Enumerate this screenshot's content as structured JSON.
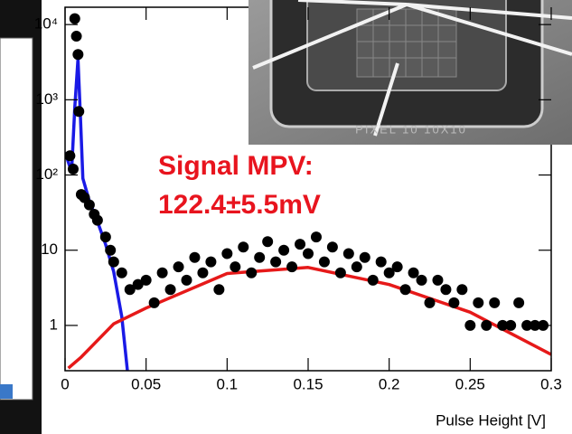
{
  "chart_data": {
    "type": "scatter",
    "x_label": "Pulse Height [V]",
    "annotation_lines": [
      "Signal MPV:",
      "122.4±5.5mV"
    ],
    "inset_photo_text": "PIXEL 10 10X10",
    "xlim": [
      0,
      0.3
    ],
    "xticks": [
      0,
      0.05,
      0.1,
      0.15,
      0.2,
      0.25,
      0.3
    ],
    "ylim": [
      0.25,
      17000
    ],
    "yscale": "log",
    "yticks": [
      1,
      10,
      {
        "value": 100,
        "label": "10²"
      },
      {
        "value": 1000,
        "label": "10³"
      },
      {
        "value": 10000,
        "label": "10⁴"
      }
    ],
    "series": [
      {
        "type": "scatter",
        "color": "#000000",
        "x": [
          0.003,
          0.005,
          0.006,
          0.007,
          0.008,
          0.0085,
          0.01,
          0.012,
          0.015,
          0.018,
          0.02,
          0.025,
          0.028,
          0.03,
          0.035,
          0.04,
          0.045,
          0.05,
          0.055,
          0.06,
          0.065,
          0.07,
          0.075,
          0.08,
          0.085,
          0.09,
          0.095,
          0.1,
          0.105,
          0.11,
          0.115,
          0.12,
          0.125,
          0.13,
          0.135,
          0.14,
          0.145,
          0.15,
          0.155,
          0.16,
          0.165,
          0.17,
          0.175,
          0.18,
          0.185,
          0.19,
          0.195,
          0.2,
          0.205,
          0.21,
          0.215,
          0.22,
          0.225,
          0.23,
          0.235,
          0.24,
          0.245,
          0.25,
          0.255,
          0.26,
          0.265,
          0.27,
          0.275,
          0.28,
          0.285,
          0.29,
          0.295
        ],
        "values": [
          180,
          120,
          12000,
          7000,
          4000,
          700,
          55,
          50,
          40,
          30,
          25,
          15,
          10,
          7,
          5,
          3,
          3.5,
          4,
          2,
          5,
          3,
          6,
          4,
          8,
          5,
          7,
          3,
          9,
          6,
          11,
          5,
          8,
          13,
          7,
          10,
          6,
          12,
          9,
          15,
          7,
          11,
          5,
          9,
          6,
          8,
          4,
          7,
          5,
          6,
          3,
          5,
          4,
          2,
          4,
          3,
          2,
          3,
          1,
          2,
          1,
          2,
          1,
          1,
          2,
          1,
          1,
          1
        ]
      },
      {
        "type": "line",
        "color": "#1a1ae6",
        "x": [
          0,
          0.004,
          0.006,
          0.008,
          0.0095,
          0.011,
          0.015,
          0.02,
          0.025,
          0.03,
          0.035,
          0.0385
        ],
        "values": [
          200,
          110,
          800,
          3500,
          600,
          90,
          45,
          24,
          12,
          5.2,
          1.3,
          0.25
        ]
      },
      {
        "type": "line",
        "color": "#e61919",
        "x": [
          0.002,
          0.01,
          0.03,
          0.05,
          0.1,
          0.15,
          0.2,
          0.25,
          0.3
        ],
        "values": [
          0.27,
          0.38,
          1.05,
          1.7,
          4.9,
          5.9,
          3.5,
          1.5,
          0.41
        ]
      }
    ]
  }
}
